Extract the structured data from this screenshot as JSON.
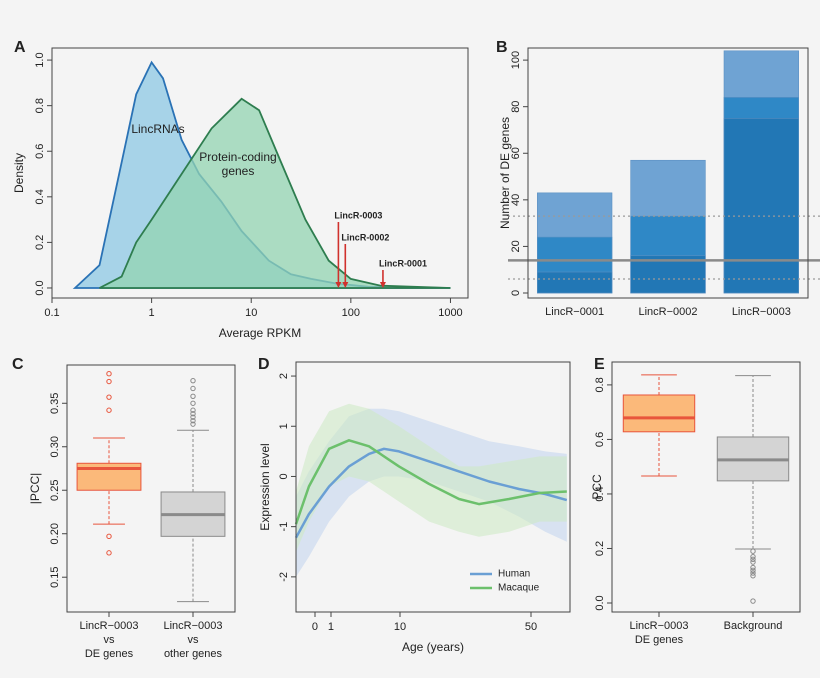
{
  "chart_data": [
    {
      "panel": "A",
      "type": "area",
      "xlabel": "Average RPKM",
      "ylabel": "Density",
      "xlog": true,
      "xlim": [
        0.1,
        1500
      ],
      "xticks": [
        0.1,
        1,
        10,
        100,
        1000
      ],
      "ylim": [
        -0.044,
        1.053
      ],
      "yticks": [
        {
          "value": 0,
          "label": "0.0"
        },
        0.2,
        0.4,
        0.6,
        0.8,
        {
          "value": 1,
          "label": "1.0"
        }
      ],
      "series": [
        {
          "name": "LincRNAs",
          "color": "#2a72b5",
          "fill": "#8ec8e4",
          "x": [
            0.17,
            0.3,
            0.5,
            0.7,
            1,
            1.3,
            2,
            3,
            5,
            8,
            15,
            25,
            40,
            70,
            150,
            1000
          ],
          "values": [
            0,
            0.1,
            0.55,
            0.85,
            0.99,
            0.92,
            0.65,
            0.5,
            0.38,
            0.25,
            0.12,
            0.06,
            0.04,
            0.02,
            0.005,
            0
          ]
        },
        {
          "name": "Protein-coding genes",
          "color": "#2e7d4f",
          "fill": "#93d4b2",
          "x": [
            0.3,
            0.5,
            0.7,
            1,
            2,
            4,
            8,
            12,
            20,
            35,
            60,
            100,
            200,
            1000
          ],
          "values": [
            0,
            0.05,
            0.2,
            0.3,
            0.5,
            0.7,
            0.83,
            0.78,
            0.55,
            0.3,
            0.12,
            0.04,
            0.01,
            0
          ]
        }
      ],
      "annotations": [
        {
          "text": "LincR-0003",
          "x": 75
        },
        {
          "text": "LincR-0002",
          "x": 88
        },
        {
          "text": "LincR-0001",
          "x": 210
        }
      ],
      "annotation_color": "#d0312d"
    },
    {
      "panel": "B",
      "type": "bar",
      "ylabel": "Number of DE genes",
      "categories": [
        "LincR−0001",
        "LincR−0002",
        "LincR−0003"
      ],
      "series": [
        {
          "color": "#6fa3d3",
          "values": [
            43,
            57,
            104
          ]
        },
        {
          "color": "#2f88c6",
          "values": [
            24,
            33,
            84
          ]
        },
        {
          "color": "#2277b5",
          "values": [
            9,
            16,
            75
          ]
        }
      ],
      "hlines": [
        {
          "value": 14,
          "style": "solid",
          "color": "#8a8a8a"
        },
        {
          "value": 33,
          "style": "dotted",
          "color": "#9a9a9a"
        },
        {
          "value": 6,
          "style": "dotted",
          "color": "#9a9a9a"
        }
      ],
      "ylim": [
        -2.15,
        105.2
      ],
      "yticks": [
        0,
        20,
        40,
        60,
        80,
        100
      ]
    },
    {
      "panel": "C",
      "type": "box",
      "ylabel": "|PCC|",
      "ylim": [
        0.11,
        0.394
      ],
      "yticks": [
        0.15,
        {
          "value": 0.2,
          "label": "0.20"
        },
        0.25,
        {
          "value": 0.3,
          "label": "0.30"
        },
        0.35
      ],
      "boxes": [
        {
          "category": [
            "LincR−0003",
            "vs",
            "DE genes"
          ],
          "color": "#fbb97a",
          "edge": "#e8553c",
          "whisker_low": 0.211,
          "q1": 0.25,
          "median": 0.275,
          "q3": 0.281,
          "whisker_high": 0.31,
          "outliers": [
            0.384,
            0.375,
            0.357,
            0.342,
            0.197,
            0.178
          ]
        },
        {
          "category": [
            "LincR−0003",
            "vs",
            "other genes"
          ],
          "color": "#d4d4d4",
          "edge": "#8a8a8a",
          "whisker_low": 0.122,
          "q1": 0.197,
          "median": 0.222,
          "q3": 0.248,
          "whisker_high": 0.319,
          "outliers": [
            0.326,
            0.33,
            0.334,
            0.338,
            0.342,
            0.35,
            0.358,
            0.367,
            0.376
          ]
        }
      ]
    },
    {
      "panel": "D",
      "type": "line",
      "xlabel": "Age (years)",
      "ylabel": "Expression level",
      "xlim": [
        -1.19,
        61
      ],
      "xticks": [
        0,
        1,
        10,
        50
      ],
      "ylim": [
        -2.7,
        2.28
      ],
      "yticks": [
        -2,
        -1,
        0,
        1,
        2
      ],
      "legend": "bottom-right",
      "series": [
        {
          "name": "Human",
          "color": "#6a9fd4",
          "band": "#c5d6ee",
          "x": [
            -1.19,
            -0.38,
            0.88,
            3.35,
            5.96,
            7.91,
            9.87,
            18.9,
            28,
            37.2,
            46.3,
            54,
            60.1
          ],
          "values": [
            -1.22,
            -0.75,
            -0.2,
            0.2,
            0.45,
            0.55,
            0.5,
            0.3,
            0.1,
            -0.1,
            -0.25,
            -0.35,
            -0.47
          ],
          "lower": [
            -2,
            -1.6,
            -0.9,
            -0.4,
            -0.1,
            0,
            0,
            -0.1,
            -0.3,
            -0.5,
            -0.8,
            -1.1,
            -1.3
          ],
          "upper": [
            -0.4,
            0.1,
            0.7,
            1.2,
            1.35,
            1.35,
            1.3,
            1.1,
            0.9,
            0.7,
            0.6,
            0.5,
            0.45
          ]
        },
        {
          "name": "Macaque",
          "color": "#6cc06c",
          "band": "#cfe9c6",
          "x": [
            -1.19,
            -0.38,
            0.88,
            3.35,
            5.96,
            9.87,
            18.9,
            28,
            34.1,
            43.3,
            52.4,
            60.1
          ],
          "values": [
            -0.95,
            -0.2,
            0.55,
            0.72,
            0.6,
            0.2,
            -0.15,
            -0.45,
            -0.55,
            -0.45,
            -0.33,
            -0.3
          ],
          "lower": [
            -1.5,
            -0.9,
            -0.2,
            0,
            -0.1,
            -0.5,
            -0.9,
            -1.1,
            -1.2,
            -1.1,
            -0.9,
            -0.9
          ],
          "upper": [
            -0.3,
            0.6,
            1.3,
            1.45,
            1.35,
            1,
            0.6,
            0.2,
            0.2,
            0.3,
            0.4,
            0.4
          ]
        }
      ]
    },
    {
      "panel": "E",
      "type": "box",
      "ylabel": "PCC",
      "ylim": [
        -0.033,
        0.884
      ],
      "yticks": [
        {
          "value": 0,
          "label": "0.0"
        },
        0.2,
        0.4,
        0.6,
        0.8
      ],
      "boxes": [
        {
          "category": [
            "LincR−0003",
            "DE genes"
          ],
          "color": "#fbb97a",
          "edge": "#e8553c",
          "whisker_low": 0.466,
          "q1": 0.628,
          "median": 0.679,
          "q3": 0.763,
          "whisker_high": 0.837,
          "outliers": []
        },
        {
          "category": [
            "Background"
          ],
          "color": "#d4d4d4",
          "edge": "#8a8a8a",
          "whisker_low": 0.198,
          "q1": 0.448,
          "median": 0.525,
          "q3": 0.609,
          "whisker_high": 0.834,
          "outliers": [
            0.19,
            0.17,
            0.16,
            0.15,
            0.13,
            0.12,
            0.11,
            0.1,
            0.007
          ]
        }
      ]
    }
  ]
}
